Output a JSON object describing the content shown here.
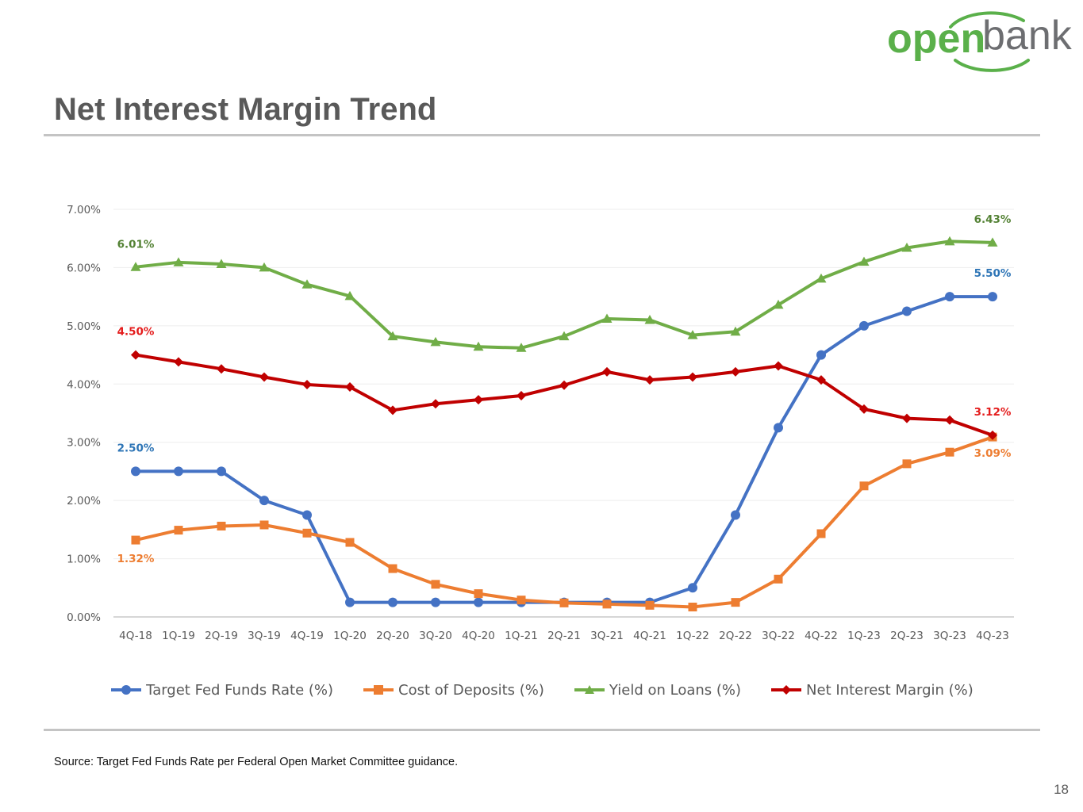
{
  "brand": {
    "logo_text_primary": "open",
    "logo_text_secondary": "bank",
    "primary_color": "#5AB04A",
    "secondary_color": "#6D6E71"
  },
  "slide": {
    "title": "Net Interest Margin Trend",
    "footnote": "Source: Target Fed Funds Rate per Federal Open Market Committee guidance.",
    "page_number": "18"
  },
  "chart_data": {
    "type": "line",
    "title": "Net Interest Margin Trend",
    "xlabel": "",
    "ylabel": "",
    "ylim": [
      0,
      7
    ],
    "yticks": [
      0,
      1,
      2,
      3,
      4,
      5,
      6,
      7
    ],
    "ytick_labels": [
      "0.00%",
      "1.00%",
      "2.00%",
      "3.00%",
      "4.00%",
      "5.00%",
      "6.00%",
      "7.00%"
    ],
    "grid": true,
    "legend_position": "bottom",
    "categories": [
      "4Q-18",
      "1Q-19",
      "2Q-19",
      "3Q-19",
      "4Q-19",
      "1Q-20",
      "2Q-20",
      "3Q-20",
      "4Q-20",
      "1Q-21",
      "2Q-21",
      "3Q-21",
      "4Q-21",
      "1Q-22",
      "2Q-22",
      "3Q-22",
      "4Q-22",
      "1Q-23",
      "2Q-23",
      "3Q-23",
      "4Q-23"
    ],
    "series": [
      {
        "name": "Target Fed Funds Rate (%)",
        "color": "#4472C4",
        "marker": "circle",
        "values": [
          2.5,
          2.5,
          2.5,
          2.0,
          1.75,
          0.25,
          0.25,
          0.25,
          0.25,
          0.25,
          0.25,
          0.25,
          0.25,
          0.5,
          1.75,
          3.25,
          4.5,
          5.0,
          5.25,
          5.5,
          5.5
        ],
        "annotations": [
          {
            "index": 0,
            "label": "2.50%",
            "color": "#2E75B6"
          },
          {
            "index": 20,
            "label": "5.50%",
            "color": "#2E75B6"
          }
        ]
      },
      {
        "name": "Cost of Deposits (%)",
        "color": "#ED7D31",
        "marker": "square",
        "values": [
          1.32,
          1.49,
          1.56,
          1.58,
          1.44,
          1.28,
          0.83,
          0.56,
          0.4,
          0.29,
          0.24,
          0.22,
          0.2,
          0.17,
          0.25,
          0.65,
          1.43,
          2.25,
          2.63,
          2.83,
          3.09
        ],
        "annotations": [
          {
            "index": 0,
            "label": "1.32%",
            "color": "#ED7D31"
          },
          {
            "index": 20,
            "label": "3.09%",
            "color": "#ED7D31"
          }
        ]
      },
      {
        "name": "Yield on Loans (%)",
        "color": "#70AD47",
        "marker": "triangle",
        "values": [
          6.01,
          6.09,
          6.06,
          6.0,
          5.71,
          5.51,
          4.82,
          4.72,
          4.64,
          4.62,
          4.82,
          5.12,
          5.1,
          4.84,
          4.9,
          5.36,
          5.81,
          6.1,
          6.34,
          6.45,
          6.43
        ],
        "annotations": [
          {
            "index": 0,
            "label": "6.01%",
            "color": "#548235"
          },
          {
            "index": 20,
            "label": "6.43%",
            "color": "#548235"
          }
        ]
      },
      {
        "name": "Net Interest Margin (%)",
        "color": "#C00000",
        "marker": "diamond",
        "values": [
          4.5,
          4.38,
          4.26,
          4.12,
          3.99,
          3.95,
          3.55,
          3.66,
          3.73,
          3.8,
          3.98,
          4.21,
          4.07,
          4.12,
          4.21,
          4.31,
          4.07,
          3.57,
          3.41,
          3.38,
          3.12
        ],
        "annotations": [
          {
            "index": 0,
            "label": "4.50%",
            "color": "#E41C1C"
          },
          {
            "index": 20,
            "label": "3.12%",
            "color": "#E41C1C"
          }
        ]
      }
    ]
  }
}
